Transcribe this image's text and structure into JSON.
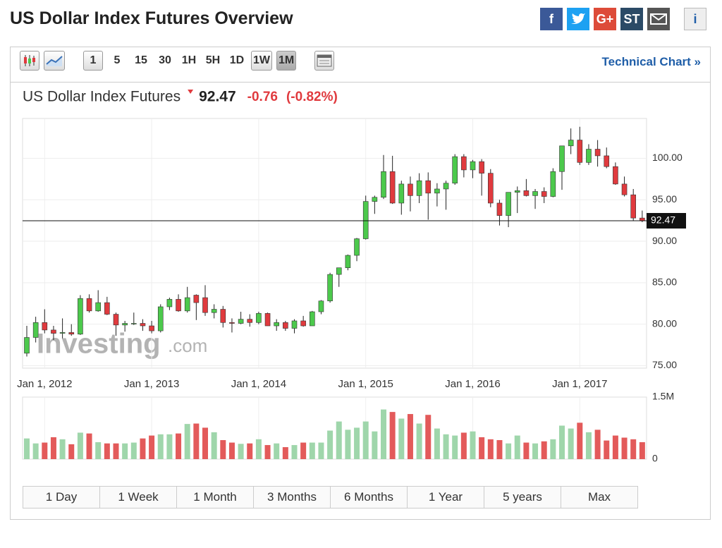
{
  "header": {
    "title": "US Dollar Index Futures Overview",
    "social": [
      "f",
      "G+",
      "ST",
      "i"
    ]
  },
  "toolbar": {
    "intervals": [
      "1",
      "5",
      "15",
      "30",
      "1H",
      "5H",
      "1D",
      "1W",
      "1M"
    ],
    "technical_link": "Technical Chart »"
  },
  "chart_data": {
    "type": "candlestick",
    "title": "US Dollar Index Futures",
    "last": 92.47,
    "last_label": "92.47",
    "change": -0.76,
    "change_pct_label": "(-0.82%)",
    "watermark": [
      "Investing",
      ".com"
    ],
    "categories": [
      null,
      null,
      "Jan 1, 2012",
      null,
      null,
      null,
      null,
      null,
      null,
      null,
      null,
      null,
      null,
      null,
      "Jan 1, 2013",
      null,
      null,
      null,
      null,
      null,
      null,
      null,
      null,
      null,
      null,
      null,
      "Jan 1, 2014",
      null,
      null,
      null,
      null,
      null,
      null,
      null,
      null,
      null,
      null,
      null,
      "Jan 1, 2015",
      null,
      null,
      null,
      null,
      null,
      null,
      null,
      null,
      null,
      null,
      null,
      "Jan 1, 2016",
      null,
      null,
      null,
      null,
      null,
      null,
      null,
      null,
      null,
      null,
      null,
      "Jan 1, 2017",
      null,
      null,
      null,
      null,
      null,
      null,
      null
    ],
    "open": [
      76.5,
      78.4,
      80.2,
      79.3,
      78.9,
      79.0,
      78.8,
      83.1,
      81.6,
      82.6,
      81.2,
      79.9,
      80.1,
      80.1,
      79.8,
      79.2,
      82.1,
      83.0,
      81.6,
      83.5,
      83.2,
      81.4,
      81.8,
      80.2,
      80.1,
      80.6,
      80.2,
      81.3,
      79.8,
      80.2,
      79.5,
      80.4,
      79.8,
      81.5,
      82.8,
      86.0,
      86.8,
      88.3,
      90.3,
      94.8,
      95.3,
      98.4,
      94.6,
      96.9,
      95.5,
      97.3,
      95.8,
      96.3,
      97.0,
      100.2,
      98.6,
      99.6,
      98.2,
      94.6,
      93.1,
      95.9,
      96.1,
      95.5,
      96.0,
      95.4,
      98.4,
      101.5,
      102.2,
      99.5,
      101.1,
      100.3,
      99.0,
      96.9,
      95.6,
      92.8
    ],
    "high": [
      79.8,
      80.9,
      81.8,
      79.8,
      80.7,
      80.0,
      83.5,
      83.6,
      84.1,
      83.3,
      81.4,
      80.4,
      81.4,
      80.6,
      80.4,
      82.4,
      83.2,
      83.6,
      84.5,
      83.6,
      84.7,
      82.4,
      82.2,
      80.7,
      81.5,
      81.2,
      81.5,
      81.4,
      80.6,
      80.4,
      80.6,
      81.0,
      81.6,
      82.9,
      86.2,
      86.8,
      88.4,
      90.4,
      95.5,
      95.5,
      100.4,
      100.3,
      97.3,
      97.8,
      98.2,
      98.3,
      97.0,
      97.3,
      100.5,
      100.5,
      99.8,
      99.9,
      98.7,
      95.0,
      95.9,
      96.6,
      97.5,
      96.3,
      96.5,
      98.8,
      101.5,
      103.6,
      103.8,
      101.7,
      102.2,
      101.3,
      99.5,
      97.8,
      96.3,
      93.7
    ],
    "low": [
      76.1,
      77.8,
      78.9,
      78.1,
      78.3,
      78.6,
      78.7,
      81.4,
      81.5,
      81.1,
      78.6,
      79.1,
      79.9,
      79.2,
      78.9,
      79.0,
      81.7,
      81.5,
      81.4,
      80.5,
      81.0,
      80.7,
      79.6,
      79.0,
      80.0,
      79.7,
      80.0,
      79.8,
      79.2,
      79.2,
      78.9,
      79.7,
      79.8,
      81.2,
      82.6,
      84.5,
      86.5,
      87.6,
      90.2,
      93.3,
      95.1,
      94.5,
      93.2,
      93.6,
      94.6,
      92.6,
      94.2,
      93.8,
      96.8,
      97.7,
      97.6,
      95.5,
      94.1,
      91.9,
      91.7,
      93.4,
      95.4,
      93.9,
      94.6,
      95.3,
      96.2,
      100.5,
      99.2,
      99.2,
      99.0,
      98.8,
      96.8,
      95.4,
      92.5,
      92.3
    ],
    "close": [
      78.4,
      80.2,
      79.3,
      78.9,
      79.0,
      78.8,
      83.1,
      81.6,
      82.6,
      81.2,
      79.9,
      80.1,
      80.1,
      79.8,
      79.2,
      82.1,
      83.0,
      81.6,
      83.2,
      82.6,
      81.4,
      81.8,
      80.2,
      80.1,
      80.6,
      80.2,
      81.3,
      79.8,
      80.2,
      79.5,
      80.4,
      79.8,
      81.5,
      82.8,
      86.0,
      86.8,
      88.3,
      90.3,
      94.8,
      95.3,
      98.4,
      94.6,
      96.9,
      95.5,
      97.3,
      95.8,
      96.3,
      97.0,
      100.2,
      98.6,
      99.6,
      98.2,
      94.6,
      93.1,
      95.9,
      96.1,
      95.5,
      96.0,
      95.4,
      98.4,
      101.5,
      102.2,
      99.5,
      101.1,
      100.3,
      99.0,
      96.9,
      95.6,
      92.8,
      92.47
    ],
    "volume": [
      500000,
      380000,
      400000,
      530000,
      480000,
      360000,
      640000,
      620000,
      410000,
      380000,
      380000,
      380000,
      400000,
      500000,
      570000,
      600000,
      600000,
      620000,
      850000,
      860000,
      760000,
      650000,
      460000,
      400000,
      370000,
      380000,
      480000,
      340000,
      380000,
      290000,
      340000,
      400000,
      400000,
      400000,
      690000,
      910000,
      710000,
      760000,
      910000,
      670000,
      1200000,
      1140000,
      980000,
      1090000,
      860000,
      1070000,
      740000,
      600000,
      570000,
      640000,
      670000,
      530000,
      480000,
      460000,
      380000,
      570000,
      400000,
      380000,
      430000,
      480000,
      810000,
      740000,
      880000,
      650000,
      710000,
      450000,
      570000,
      520000,
      480000,
      410000
    ],
    "up_color": "#4cc94c",
    "down_color": "#e03a3e",
    "volume_up_color": "#9fd6ab",
    "volume_down_color": "#e35a5a",
    "ylim": [
      74.7,
      104.8
    ],
    "yticks": [
      {
        "value": 75,
        "label": "75.00"
      },
      {
        "value": 80,
        "label": "80.00"
      },
      {
        "value": 85,
        "label": "85.00"
      },
      {
        "value": 90,
        "label": "90.00"
      },
      {
        "value": 95,
        "label": "95.00"
      },
      {
        "value": 100,
        "label": "100.00"
      }
    ],
    "volume_lim": [
      0,
      1500000
    ],
    "volume_ticks": [
      0,
      {
        "value": 1500000,
        "label": "1.5M"
      }
    ],
    "grid": true
  },
  "tabs": [
    "1 Day",
    "1 Week",
    "1 Month",
    "3 Months",
    "6 Months",
    "1 Year",
    "5 years",
    "Max"
  ]
}
